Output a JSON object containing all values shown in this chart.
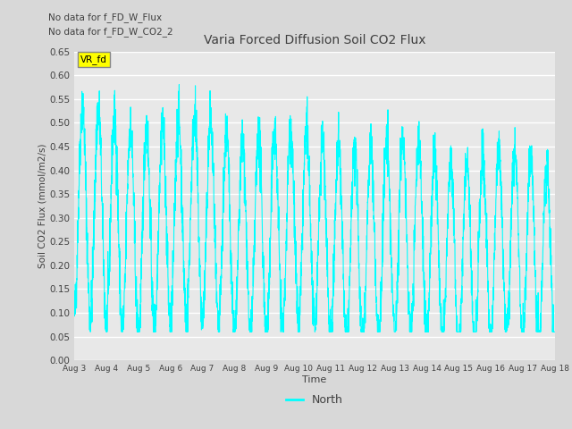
{
  "title": "Varia Forced Diffusion Soil CO2 Flux",
  "xlabel": "Time",
  "ylabel": "Soil CO2 Flux (mmol/m2/s)",
  "ylim": [
    0.0,
    0.65
  ],
  "yticks": [
    0.0,
    0.05,
    0.1,
    0.15,
    0.2,
    0.25,
    0.3,
    0.35,
    0.4,
    0.45,
    0.5,
    0.55,
    0.6,
    0.65
  ],
  "line_color": "#00FFFF",
  "line_width": 0.8,
  "bg_color": "#D8D8D8",
  "plot_bg_color": "#E8E8E8",
  "text_color": "#404040",
  "annotations": [
    "No data for f_FD_W_Flux",
    "No data for f_FD_W_CO2_2"
  ],
  "legend_label": "North",
  "legend_box_color": "#FFFF00",
  "legend_box_label": "VR_fd",
  "x_tick_labels": [
    "Aug 3",
    "Aug 4",
    "Aug 5",
    "Aug 6",
    "Aug 7",
    "Aug 8",
    "Aug 9",
    "Aug 10",
    "Aug 11",
    "Aug 12",
    "Aug 13",
    "Aug 14",
    "Aug 15",
    "Aug 16",
    "Aug 17",
    "Aug 18"
  ],
  "num_days": 15,
  "seed": 42
}
